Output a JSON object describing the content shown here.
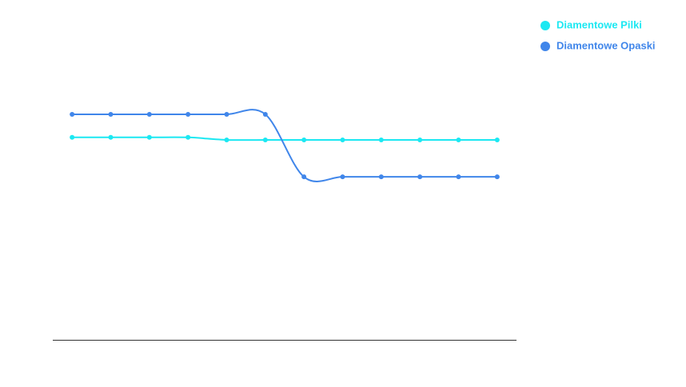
{
  "chart_data": {
    "type": "line",
    "categories": [
      null,
      null,
      null,
      null,
      null,
      null,
      null,
      null,
      null,
      null,
      null,
      null
    ],
    "series": [
      {
        "name": "Diamentowe Pilki",
        "color": "#1ce8f2",
        "values": [
          64.1,
          64.1,
          64.1,
          64.1,
          63.3,
          63.3,
          63.3,
          63.3,
          63.3,
          63.3,
          63.3,
          63.3
        ]
      },
      {
        "name": "Diamentowe Opaski",
        "color": "#4086ea",
        "values": [
          71.4,
          71.4,
          71.4,
          71.4,
          71.4,
          71.4,
          51.6,
          51.6,
          51.6,
          51.6,
          51.6,
          51.6
        ]
      }
    ],
    "ylim": [
      0,
      100
    ],
    "legend": "top-right"
  }
}
